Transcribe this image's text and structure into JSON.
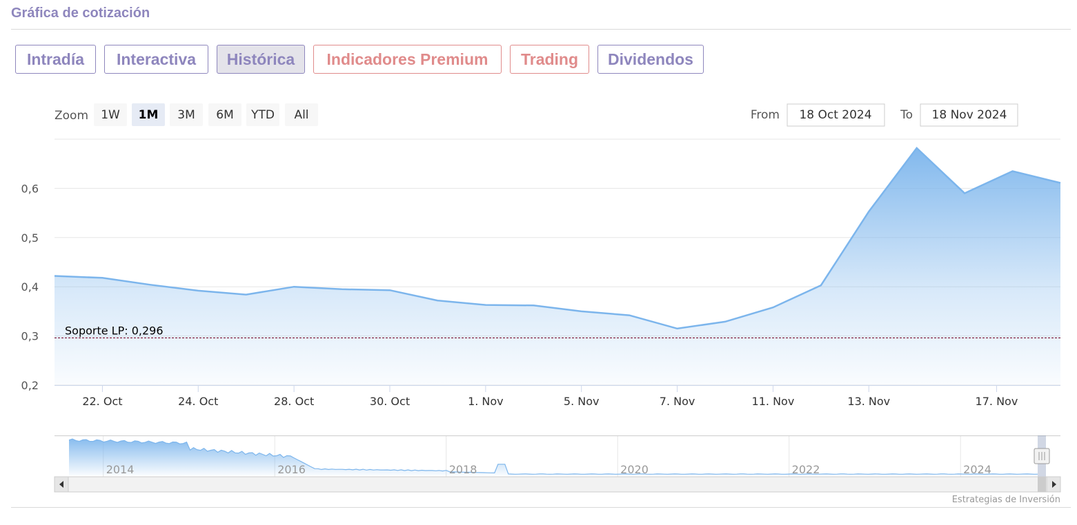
{
  "header": {
    "title": "Gráfica de cotización"
  },
  "tabs": [
    {
      "label": "Intradía",
      "active": false,
      "color": "#8e86bd"
    },
    {
      "label": "Interactiva",
      "active": false,
      "color": "#8e86bd"
    },
    {
      "label": "Histórica",
      "active": true,
      "color": "#8e86bd"
    },
    {
      "label": "Indicadores Premium",
      "active": false,
      "color": "#e08b8b"
    },
    {
      "label": "Trading",
      "active": false,
      "color": "#e08b8b"
    },
    {
      "label": "Dividendos",
      "active": false,
      "color": "#8e86bd"
    }
  ],
  "range_selector": {
    "zoom_label": "Zoom",
    "buttons": [
      "1W",
      "1M",
      "3M",
      "6M",
      "YTD",
      "All"
    ],
    "selected": "1M",
    "from_label": "From",
    "from_value": "18 Oct 2024",
    "to_label": "To",
    "to_value": "18 Nov 2024"
  },
  "credits": "Estrategias de Inversión",
  "colors": {
    "series": "#7cb5ec",
    "support_line": "#7a0f2e",
    "accent": "#8e86bd",
    "premium": "#e08b8b"
  },
  "chart_data": {
    "type": "area",
    "title": "",
    "xlabel": "",
    "ylabel": "",
    "ylim": [
      0.2,
      0.7
    ],
    "yticks": [
      "0,2",
      "0,3",
      "0,4",
      "0,5",
      "0,6"
    ],
    "xticks": [
      {
        "label": "22. Oct",
        "date": "2024-10-22"
      },
      {
        "label": "24. Oct",
        "date": "2024-10-24"
      },
      {
        "label": "28. Oct",
        "date": "2024-10-28"
      },
      {
        "label": "30. Oct",
        "date": "2024-10-30"
      },
      {
        "label": "1. Nov",
        "date": "2024-11-01"
      },
      {
        "label": "5. Nov",
        "date": "2024-11-05"
      },
      {
        "label": "7. Nov",
        "date": "2024-11-07"
      },
      {
        "label": "11. Nov",
        "date": "2024-11-11"
      },
      {
        "label": "13. Nov",
        "date": "2024-11-13"
      },
      {
        "label": "17. Nov",
        "date": "2024-11-17"
      }
    ],
    "series": [
      {
        "points": [
          {
            "date": "2024-10-21",
            "value": 0.422
          },
          {
            "date": "2024-10-22",
            "value": 0.418
          },
          {
            "date": "2024-10-23",
            "value": 0.404
          },
          {
            "date": "2024-10-24",
            "value": 0.392
          },
          {
            "date": "2024-10-25",
            "value": 0.384
          },
          {
            "date": "2024-10-28",
            "value": 0.4
          },
          {
            "date": "2024-10-29",
            "value": 0.395
          },
          {
            "date": "2024-10-30",
            "value": 0.393
          },
          {
            "date": "2024-10-31",
            "value": 0.372
          },
          {
            "date": "2024-11-01",
            "value": 0.363
          },
          {
            "date": "2024-11-04",
            "value": 0.362
          },
          {
            "date": "2024-11-05",
            "value": 0.35
          },
          {
            "date": "2024-11-06",
            "value": 0.342
          },
          {
            "date": "2024-11-07",
            "value": 0.315
          },
          {
            "date": "2024-11-08",
            "value": 0.329
          },
          {
            "date": "2024-11-11",
            "value": 0.358
          },
          {
            "date": "2024-11-12",
            "value": 0.403
          },
          {
            "date": "2024-11-13",
            "value": 0.553
          },
          {
            "date": "2024-11-14",
            "value": 0.682
          },
          {
            "date": "2024-11-15",
            "value": 0.59
          },
          {
            "date": "2024-11-18",
            "value": 0.635
          },
          {
            "date": "2024-11-19",
            "value": 0.611
          }
        ]
      }
    ],
    "plot_lines": [
      {
        "label": "Soporte LP: 0,296",
        "value": 0.296,
        "style": "dashed"
      }
    ],
    "navigator": {
      "xticks": [
        "2014",
        "2016",
        "2018",
        "2020",
        "2022",
        "2024"
      ]
    },
    "grid": true,
    "legend": "none"
  }
}
